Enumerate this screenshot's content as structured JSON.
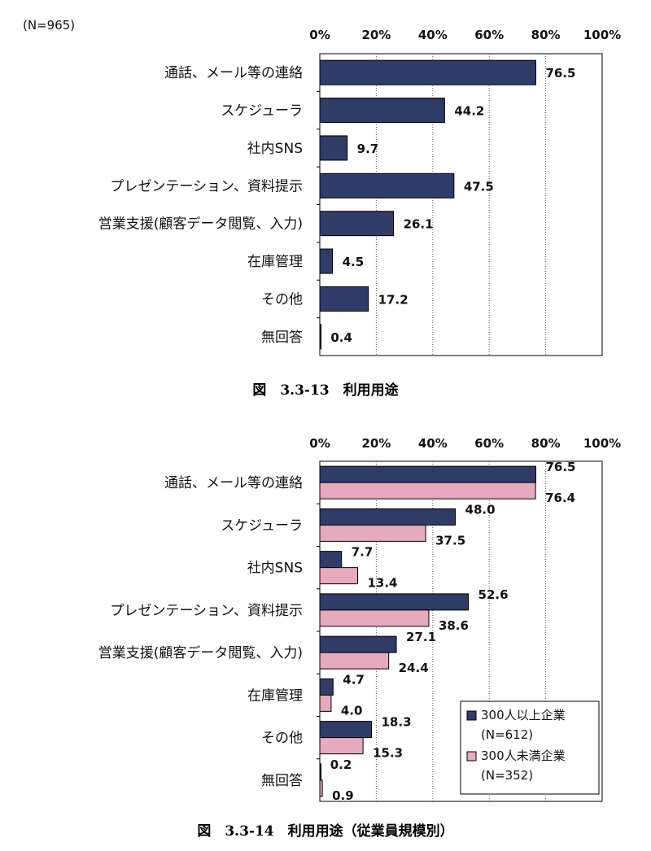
{
  "chart_data": [
    {
      "type": "bar",
      "orientation": "horizontal",
      "note": "(N=965)",
      "caption": "図　3.3-13　利用用途",
      "categories": [
        "通話、メール等の連絡",
        "スケジューラ",
        "社内SNS",
        "プレゼンテーション、資料提示",
        "営業支援(顧客データ閲覧、入力)",
        "在庫管理",
        "その他",
        "無回答"
      ],
      "values": [
        76.5,
        44.2,
        9.7,
        47.5,
        26.1,
        4.5,
        17.2,
        0.4
      ],
      "value_labels": [
        "76.5",
        "44.2",
        "9.7",
        "47.5",
        "26.1",
        "4.5",
        "17.2",
        "0.4"
      ],
      "xlim": [
        0,
        100
      ],
      "x_ticks": [
        "0%",
        "20%",
        "40%",
        "60%",
        "80%",
        "100%"
      ],
      "axis_position": "top",
      "grid": "vertical dotted",
      "color": "#2f3c68"
    },
    {
      "type": "bar",
      "orientation": "horizontal",
      "caption": "図　3.3-14　利用用途（従業員規模別）",
      "categories": [
        "通話、メール等の連絡",
        "スケジューラ",
        "社内SNS",
        "プレゼンテーション、資料提示",
        "営業支援(顧客データ閲覧、入力)",
        "在庫管理",
        "その他",
        "無回答"
      ],
      "series": [
        {
          "name": "300人以上企業",
          "n": "(N=612)",
          "color": "#2f3c68",
          "values": [
            76.5,
            48.0,
            7.7,
            52.6,
            27.1,
            4.7,
            18.3,
            0.2
          ],
          "value_labels": [
            "76.5",
            "48.0",
            "7.7",
            "52.6",
            "27.1",
            "4.7",
            "18.3",
            "0.2"
          ]
        },
        {
          "name": "300人未満企業",
          "n": "(N=352)",
          "color": "#e6a9bd",
          "values": [
            76.4,
            37.5,
            13.4,
            38.6,
            24.4,
            4.0,
            15.3,
            0.9
          ],
          "value_labels": [
            "76.4",
            "37.5",
            "13.4",
            "38.6",
            "24.4",
            "4.0",
            "15.3",
            "0.9"
          ]
        }
      ],
      "xlim": [
        0,
        100
      ],
      "x_ticks": [
        "0%",
        "20%",
        "40%",
        "60%",
        "80%",
        "100%"
      ],
      "axis_position": "top",
      "grid": "vertical dotted",
      "legend_position": "bottom-right"
    }
  ]
}
